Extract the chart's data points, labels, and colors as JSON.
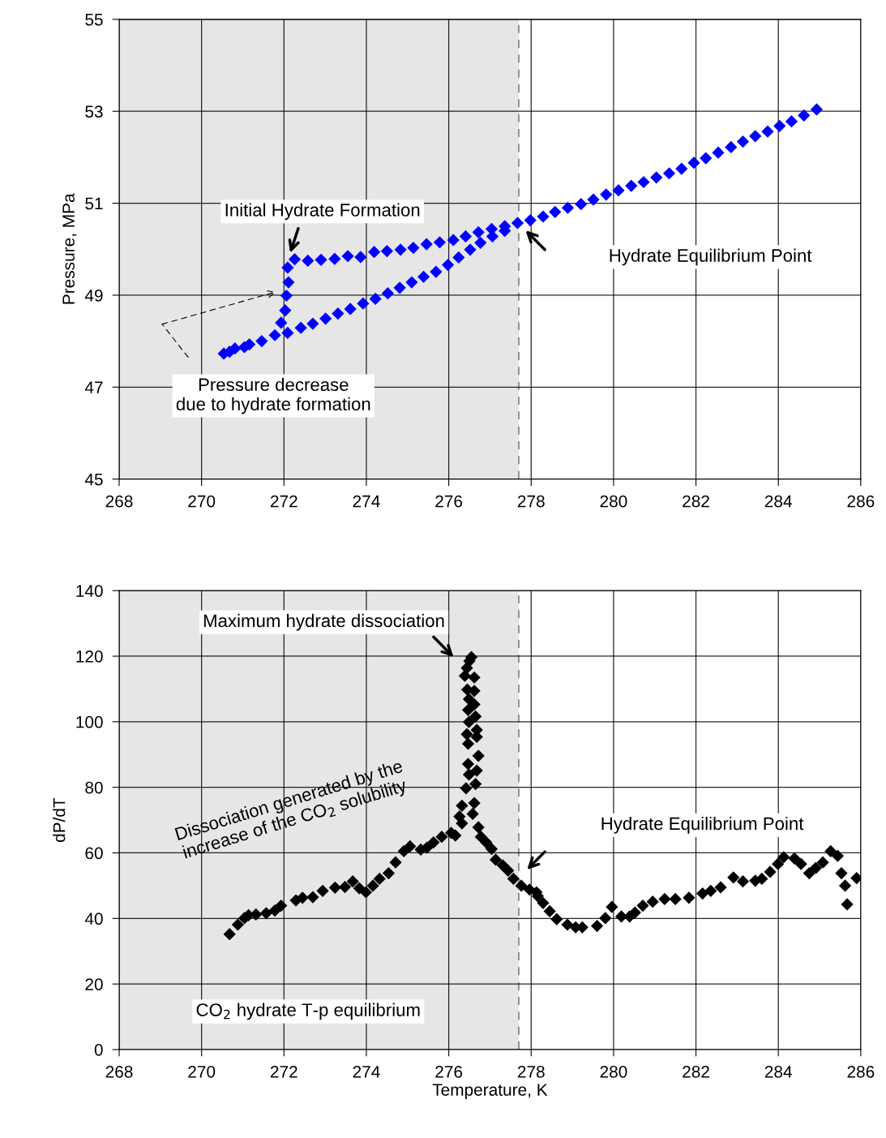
{
  "chart_data": [
    {
      "type": "scatter",
      "ylabel": "Pressure, MPa",
      "xlim": [
        268,
        286
      ],
      "xticks": [
        268,
        270,
        272,
        274,
        276,
        278,
        280,
        282,
        284,
        286
      ],
      "ylim": [
        45,
        55
      ],
      "yticks": [
        45,
        47,
        49,
        51,
        53,
        55
      ],
      "grid": true,
      "marker": "diamond",
      "legend": false,
      "bands": [
        {
          "axis": "x",
          "from": 268,
          "to": 277.7,
          "color": "#e6e6e6"
        }
      ],
      "ref_lines": [
        {
          "axis": "x",
          "value": 277.7,
          "color": "#808080",
          "line_style": "dashed"
        }
      ],
      "annotations": [
        "Initial Hydrate Formation",
        "Hydrate Equilibrium Point",
        "Pressure decrease\ndue to hydrate formation"
      ],
      "series": [
        {
          "color": "#0000ff",
          "x": [
            270.54,
            270.68,
            270.81,
            271.04,
            271.16,
            271.46,
            271.78,
            271.93,
            272.03,
            272.06,
            272.11,
            272.09,
            272.26,
            272.58,
            272.9,
            273.23,
            273.55,
            273.86,
            274.19,
            274.5,
            274.83,
            275.14,
            275.46,
            275.78,
            276.11,
            276.41,
            276.72,
            277.04,
            277.36,
            277.67,
            277.98,
            278.29,
            278.58,
            278.89,
            279.21,
            279.51,
            279.82,
            280.12,
            280.43,
            280.73,
            281.04,
            281.35,
            281.65,
            281.95,
            282.24,
            282.54,
            282.85,
            283.14,
            283.44,
            283.74,
            284.03,
            284.32,
            284.62,
            284.93,
            272.09,
            272.41,
            272.7,
            273.01,
            273.31,
            273.61,
            273.92,
            274.22,
            274.52,
            274.81,
            275.1,
            275.39,
            275.69,
            275.98,
            276.24,
            276.52,
            276.77,
            277.06,
            277.36
          ],
          "values": [
            47.73,
            47.77,
            47.84,
            47.87,
            47.93,
            48.0,
            48.13,
            48.4,
            48.67,
            48.99,
            49.28,
            49.6,
            49.78,
            49.75,
            49.77,
            49.79,
            49.85,
            49.83,
            49.94,
            49.96,
            49.99,
            50.03,
            50.11,
            50.15,
            50.2,
            50.28,
            50.37,
            50.44,
            50.5,
            50.57,
            50.63,
            50.71,
            50.81,
            50.9,
            50.98,
            51.08,
            51.19,
            51.28,
            51.38,
            51.46,
            51.56,
            51.65,
            51.75,
            51.88,
            51.98,
            52.1,
            52.22,
            52.34,
            52.46,
            52.56,
            52.68,
            52.78,
            52.91,
            53.04,
            48.18,
            48.29,
            48.38,
            48.49,
            48.6,
            48.7,
            48.82,
            48.92,
            49.04,
            49.16,
            49.28,
            49.4,
            49.51,
            49.66,
            49.82,
            49.99,
            50.14,
            50.28,
            50.4
          ]
        }
      ]
    },
    {
      "type": "scatter",
      "ylabel": "dP/dT",
      "xlabel": "Temperature, K",
      "xlim": [
        268,
        286
      ],
      "xticks": [
        268,
        270,
        272,
        274,
        276,
        278,
        280,
        282,
        284,
        286
      ],
      "ylim": [
        0,
        140
      ],
      "yticks": [
        0,
        20,
        40,
        60,
        80,
        100,
        120,
        140
      ],
      "grid": true,
      "marker": "diamond",
      "legend": false,
      "bands": [
        {
          "axis": "x",
          "from": 268,
          "to": 277.7,
          "color": "#e6e6e6"
        }
      ],
      "ref_lines": [
        {
          "axis": "x",
          "value": 277.7,
          "color": "#808080",
          "line_style": "dashed"
        }
      ],
      "annotations": [
        "Maximum hydrate dissociation",
        "Hydrate Equilibrium Point",
        "Dissociation generated by the\nincrease of the CO$_{2}$ solubility",
        "CO$_{2}$ hydrate T-p equilibrium"
      ],
      "series": [
        {
          "color": "#000000",
          "x": [
            270.68,
            270.88,
            271.04,
            271.14,
            271.32,
            271.57,
            271.78,
            271.93,
            272.29,
            272.45,
            272.7,
            272.94,
            273.24,
            273.48,
            273.67,
            273.83,
            273.99,
            274.16,
            274.32,
            274.54,
            274.71,
            274.91,
            275.06,
            275.32,
            275.47,
            275.63,
            275.83,
            276.06,
            276.16,
            276.32,
            276.26,
            276.32,
            276.42,
            276.49,
            276.47,
            276.47,
            276.44,
            276.49,
            276.47,
            276.49,
            276.45,
            276.39,
            276.44,
            276.5,
            276.55,
            276.62,
            276.62,
            276.62,
            276.65,
            276.68,
            276.68,
            276.72,
            276.68,
            276.65,
            276.62,
            276.58,
            276.72,
            276.78,
            276.91,
            277.04,
            277.14,
            277.31,
            277.44,
            277.57,
            277.76,
            277.96,
            278.13,
            278.16,
            278.29,
            278.45,
            278.62,
            278.88,
            279.08,
            279.24,
            279.6,
            279.8,
            279.96,
            280.19,
            280.39,
            280.52,
            280.71,
            280.95,
            281.24,
            281.5,
            281.83,
            282.16,
            282.36,
            282.6,
            282.91,
            283.14,
            283.44,
            283.6,
            283.8,
            283.99,
            284.13,
            284.39,
            284.55,
            284.75,
            284.91,
            285.08,
            285.27,
            285.44,
            285.53,
            285.62,
            285.67,
            285.9
          ],
          "values": [
            35.2,
            38.1,
            40.1,
            41.0,
            41.2,
            41.6,
            42.4,
            43.9,
            45.5,
            46.3,
            46.5,
            48.4,
            49.4,
            49.6,
            51.3,
            49.2,
            48.0,
            50.0,
            52.1,
            53.8,
            57.1,
            60.5,
            62.0,
            61.0,
            61.6,
            63.2,
            64.9,
            66.1,
            65.3,
            69.0,
            71.1,
            74.4,
            79.7,
            83.9,
            87.1,
            93.3,
            96.2,
            99.9,
            103.6,
            106.9,
            109.8,
            114.0,
            116.4,
            118.5,
            119.7,
            113.5,
            109.4,
            105.3,
            101.6,
            97.5,
            95.4,
            89.6,
            85.1,
            81.0,
            75.2,
            71.9,
            67.8,
            64.9,
            63.2,
            61.2,
            57.9,
            56.2,
            54.6,
            52.1,
            50.0,
            48.8,
            48.0,
            46.8,
            44.7,
            42.2,
            39.8,
            38.1,
            37.3,
            37.3,
            37.7,
            40.1,
            43.5,
            40.6,
            40.6,
            41.8,
            43.9,
            45.1,
            45.9,
            45.9,
            46.3,
            47.6,
            48.4,
            49.5,
            52.5,
            51.3,
            51.5,
            52.1,
            54.2,
            56.6,
            58.7,
            58.3,
            56.6,
            53.8,
            55.4,
            57.1,
            60.5,
            59.1,
            53.8,
            50.0,
            44.3,
            52.3
          ]
        }
      ]
    }
  ]
}
